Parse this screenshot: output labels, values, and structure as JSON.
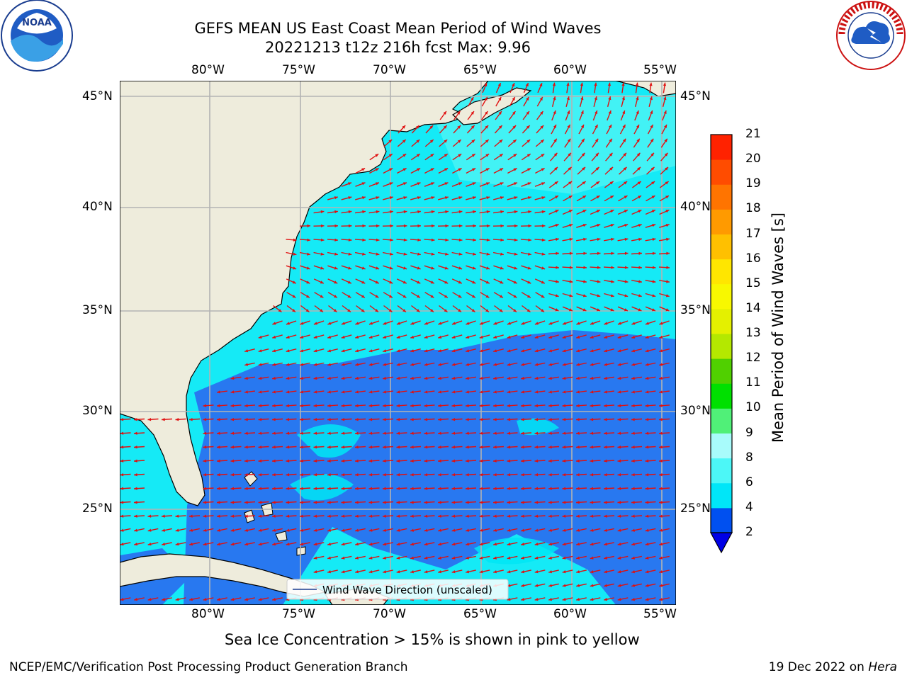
{
  "title": {
    "line1": "GEFS MEAN US East Coast Mean Period of Wind Waves",
    "line2": "20221213 t12z 216h fcst   Max: 9.96"
  },
  "logos": {
    "left": "NOAA",
    "left_ring": "NATIONAL OCEANIC AND ATMOSPHERIC ADMINISTRATION · U.S. DEPARTMENT OF COMMERCE",
    "right_ring": "NATIONAL WEATHER SERVICE"
  },
  "map": {
    "lon_labels": [
      "80°W",
      "75°W",
      "70°W",
      "65°W",
      "60°W",
      "55°W"
    ],
    "lat_labels": [
      "45°N",
      "40°N",
      "35°N",
      "30°N",
      "25°N"
    ],
    "legend_label": "Wind Wave Direction (unscaled)",
    "colors": {
      "land": "#eeecdc",
      "period_2_4": "#2878f0",
      "period_4_6": "#00e6f5",
      "period_6_8": "#56f5f5",
      "arrows": "#e01010",
      "grid": "#b3b3b3"
    }
  },
  "colorbar": {
    "label": "Mean Period of Wind Waves [s]",
    "ticks": [
      "2",
      "4",
      "6",
      "8",
      "9",
      "10",
      "11",
      "12",
      "13",
      "14",
      "15",
      "16",
      "17",
      "18",
      "19",
      "20",
      "21"
    ],
    "colors": [
      "#0050f0",
      "#00e6f8",
      "#4cf7f7",
      "#a8fbfb",
      "#50f078",
      "#00e000",
      "#50d000",
      "#b4e800",
      "#e4f000",
      "#f8f800",
      "#ffe600",
      "#ffc000",
      "#ff9a00",
      "#ff7400",
      "#ff4c00",
      "#ff2200",
      "#ff0000"
    ],
    "under_color": "#0000e6"
  },
  "footer": {
    "note": "Sea Ice Concentration > 15% is shown in pink to yellow",
    "left": "NCEP/EMC/Verification Post Processing Product Generation Branch",
    "date": "19 Dec 2022 on ",
    "host": "Hera"
  }
}
